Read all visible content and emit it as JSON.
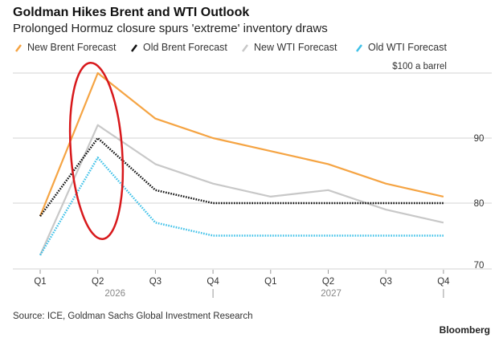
{
  "chart_data": {
    "type": "line",
    "title": "Goldman Hikes Brent and WTI Outlook",
    "subtitle": "Prolonged Hormuz closure spurs 'extreme' inventory draws",
    "categories": [
      "Q1",
      "Q2",
      "Q3",
      "Q4",
      "Q1",
      "Q2",
      "Q3",
      "Q4"
    ],
    "years": [
      "2026",
      "2027"
    ],
    "y_unit_label": "$100 a barrel",
    "y_ticks": [
      "90",
      "80",
      "70"
    ],
    "ylim": [
      70,
      100
    ],
    "grid": true,
    "legend_position": "top-left",
    "series": [
      {
        "name": "New Brent Forecast",
        "color": "#f5a443",
        "dash": false,
        "values": [
          78,
          100,
          93,
          90,
          88,
          86,
          83,
          81
        ]
      },
      {
        "name": "Old Brent Forecast",
        "color": "#111111",
        "dash": true,
        "values": [
          78,
          90,
          82,
          80,
          80,
          80,
          80,
          80
        ]
      },
      {
        "name": "New WTI Forecast",
        "color": "#c8c8c8",
        "dash": false,
        "values": [
          72,
          92,
          86,
          83,
          81,
          82,
          79,
          77
        ]
      },
      {
        "name": "Old WTI Forecast",
        "color": "#3fc1e8",
        "dash": true,
        "values": [
          72,
          87,
          77,
          75,
          75,
          75,
          75,
          75
        ]
      }
    ],
    "annotation": {
      "shape": "ellipse",
      "color": "#d8191c",
      "around_category": "Q2 2026"
    },
    "source": "Source: ICE, Goldman Sachs Global Investment Research",
    "brand": "Bloomberg"
  }
}
